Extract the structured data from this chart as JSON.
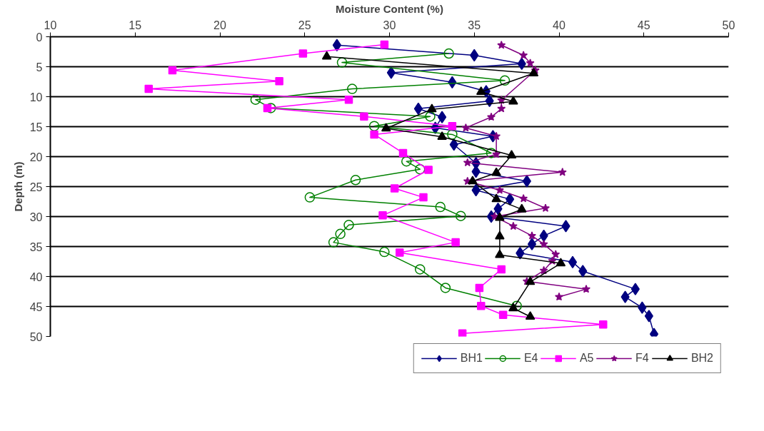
{
  "chart_data": {
    "type": "line",
    "xlabel": "Moisture Content (%)",
    "ylabel": "Depth (m)",
    "xlim": [
      10,
      50
    ],
    "xticks": [
      10,
      15,
      20,
      25,
      30,
      35,
      40,
      45,
      50
    ],
    "ylim": [
      50,
      0
    ],
    "yticks": [
      0,
      5,
      10,
      15,
      20,
      25,
      30,
      35,
      40,
      45,
      50
    ],
    "grid": "y",
    "legend": "bottom",
    "line_style": "solid",
    "series": [
      {
        "name": "BH1",
        "color": "#000080",
        "marker": "diamond",
        "x": [
          26.9,
          35.0,
          37.8,
          30.1,
          33.7,
          35.7,
          35.9,
          31.7,
          33.1,
          32.7,
          36.1,
          33.8,
          35.1,
          35.1,
          38.1,
          35.1,
          37.1,
          36.4,
          36.0,
          40.4,
          39.1,
          38.4,
          37.7,
          40.8,
          41.4,
          44.5,
          43.9,
          44.9,
          45.3,
          45.6
        ],
        "values": [
          1.4,
          3.1,
          4.5,
          6.0,
          7.6,
          9.1,
          10.7,
          12.0,
          13.4,
          15.2,
          16.6,
          18.0,
          21.1,
          22.5,
          24.1,
          25.6,
          27.1,
          28.7,
          30.0,
          31.6,
          33.2,
          34.6,
          36.1,
          37.6,
          39.1,
          42.1,
          43.4,
          45.2,
          46.6,
          49.6
        ]
      },
      {
        "name": "E4",
        "color": "#008000",
        "marker": "circle",
        "x": [
          33.5,
          27.2,
          36.8,
          27.8,
          22.1,
          23.0,
          32.4,
          29.1,
          33.7,
          36.0,
          31.0,
          31.8,
          28.0,
          25.3,
          33.0,
          34.2,
          27.6,
          27.1,
          26.7,
          29.7,
          31.8,
          33.3,
          37.5
        ],
        "values": [
          2.8,
          4.3,
          7.3,
          8.7,
          10.5,
          11.9,
          13.3,
          14.9,
          16.3,
          19.4,
          20.8,
          22.1,
          23.9,
          26.8,
          28.4,
          29.9,
          31.4,
          32.9,
          34.3,
          35.9,
          38.8,
          41.9,
          44.9
        ]
      },
      {
        "name": "A5",
        "color": "#ff00ff",
        "marker": "square",
        "x": [
          29.7,
          24.9,
          17.2,
          23.5,
          15.8,
          27.6,
          22.8,
          28.5,
          33.7,
          29.1,
          30.8,
          32.3,
          30.3,
          32.0,
          29.6,
          33.9,
          30.6,
          36.6,
          35.3,
          35.4,
          36.7,
          42.6,
          34.3
        ],
        "values": [
          1.3,
          2.8,
          5.6,
          7.4,
          8.7,
          10.5,
          11.9,
          13.3,
          14.9,
          16.3,
          19.4,
          22.2,
          25.3,
          26.8,
          29.8,
          34.3,
          36.0,
          38.8,
          41.9,
          44.9,
          46.4,
          48.0,
          49.5
        ]
      },
      {
        "name": "F4",
        "color": "#800080",
        "marker": "star",
        "x": [
          36.6,
          37.9,
          38.3,
          38.6,
          36.6,
          36.6,
          36.0,
          34.5,
          36.3,
          36.3,
          34.6,
          40.2,
          34.6,
          36.5,
          37.9,
          39.2,
          36.2,
          37.3,
          38.4,
          39.1,
          39.8,
          39.6,
          39.1,
          38.1,
          41.6,
          40.0
        ],
        "values": [
          1.4,
          3.1,
          4.4,
          5.6,
          10.6,
          12.0,
          13.4,
          15.2,
          16.6,
          19.6,
          21.0,
          22.6,
          24.1,
          25.6,
          27.0,
          28.6,
          30.0,
          31.6,
          33.2,
          34.6,
          36.3,
          37.4,
          39.0,
          40.8,
          42.1,
          43.4
        ]
      },
      {
        "name": "BH2",
        "color": "#000000",
        "marker": "triangle",
        "x": [
          26.3,
          38.5,
          35.4,
          37.3,
          32.5,
          29.8,
          33.1,
          37.2,
          36.3,
          34.9,
          36.3,
          37.8,
          36.5,
          36.5,
          36.5,
          40.1,
          38.3,
          37.3,
          38.3
        ],
        "values": [
          3.3,
          6.1,
          9.2,
          10.8,
          12.1,
          15.3,
          16.7,
          19.8,
          22.7,
          24.1,
          27.1,
          28.8,
          30.2,
          33.3,
          36.4,
          37.8,
          40.9,
          45.3,
          46.7
        ]
      }
    ]
  }
}
